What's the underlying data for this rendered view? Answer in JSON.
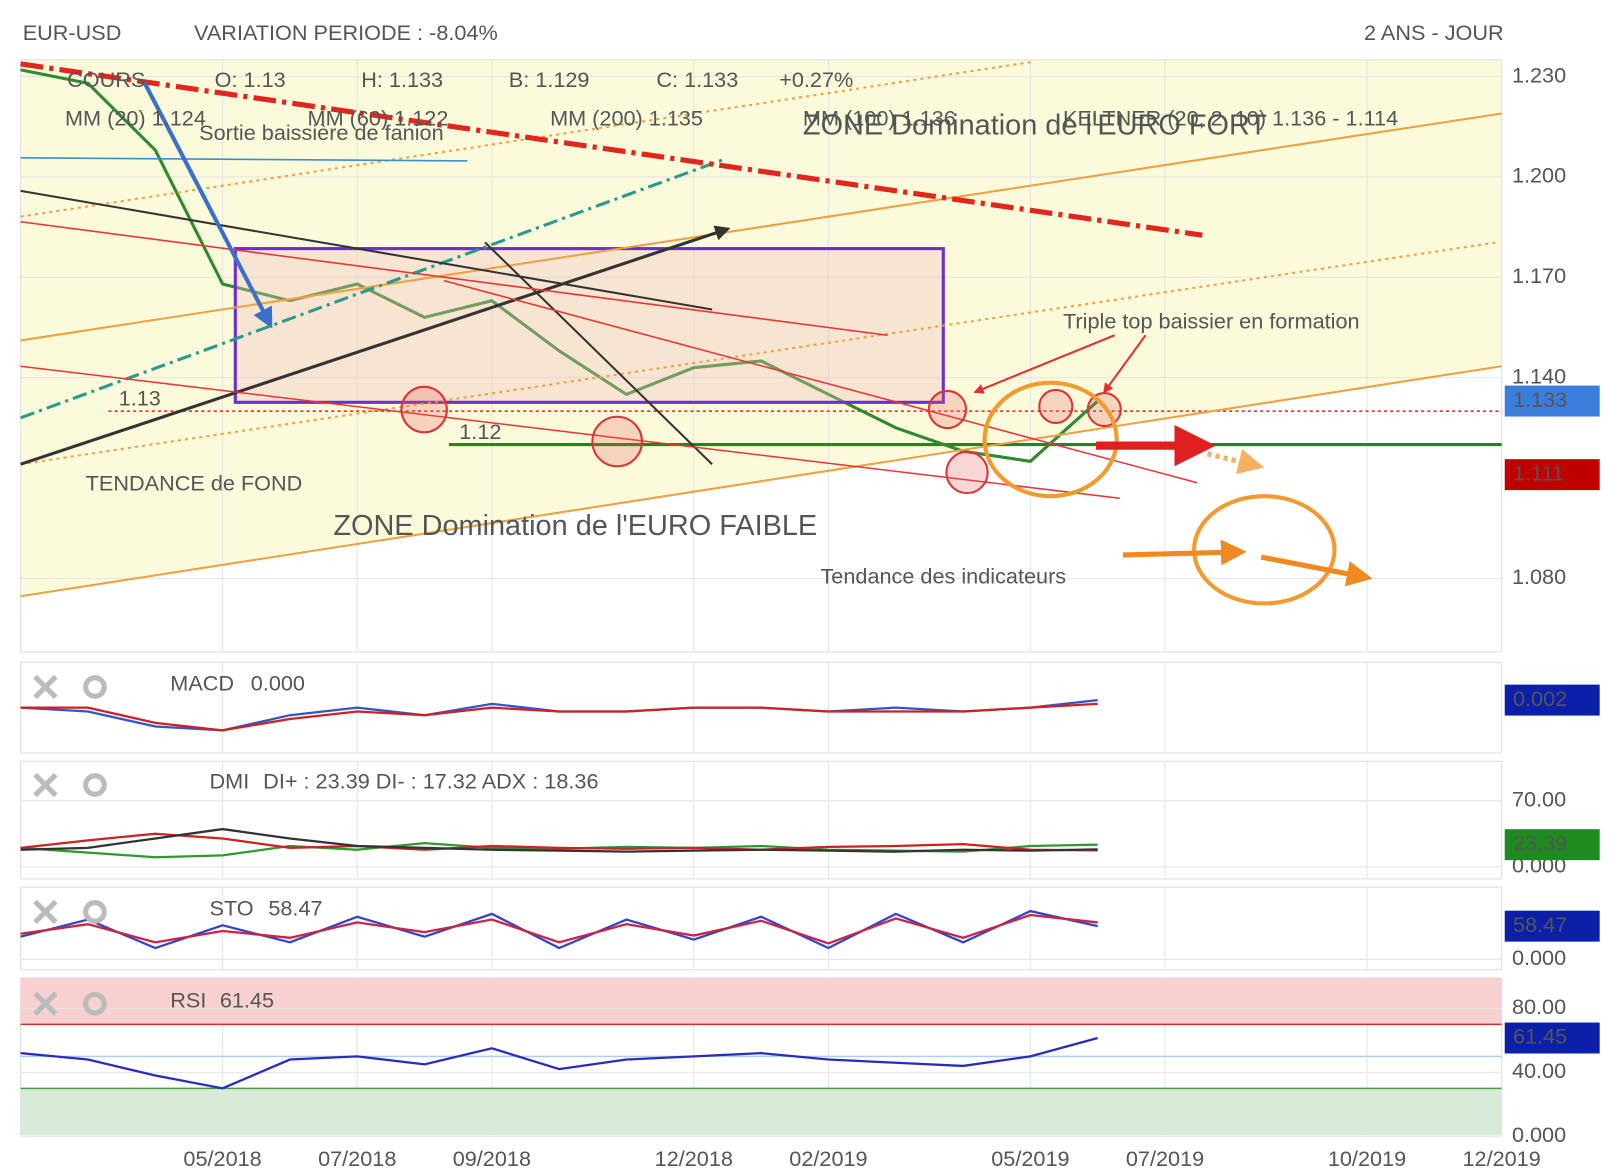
{
  "header": {
    "symbol": "EUR-USD",
    "variation": "VARIATION PERIODE : -8.04%",
    "period": "2 ANS - JOUR"
  },
  "chart_data": [
    {
      "type": "line",
      "x": [
        "02/2018",
        "03/2018",
        "04/2018",
        "05/2018",
        "06/2018",
        "07/2018",
        "08/2018",
        "09/2018",
        "10/2018",
        "11/2018",
        "12/2018",
        "01/2019",
        "02/2019",
        "03/2019",
        "04/2019",
        "05/2019",
        "06/2019"
      ],
      "series": [
        {
          "color": "#2f8a2f",
          "values": [
            1.232,
            1.228,
            1.208,
            1.168,
            1.163,
            1.168,
            1.158,
            1.163,
            1.148,
            1.135,
            1.143,
            1.145,
            1.135,
            1.125,
            1.118,
            1.115,
            1.133
          ]
        }
      ],
      "xlim": [
        "02/2018",
        "12/2019"
      ],
      "xticks": [
        "05/2018",
        "07/2018",
        "09/2018",
        "12/2018",
        "02/2019",
        "05/2019",
        "07/2019",
        "10/2019",
        "12/2019"
      ],
      "ylim": [
        1.058,
        1.235
      ],
      "yticks": [
        {
          "value": 1.23,
          "label": "1.230"
        },
        {
          "value": 1.2,
          "label": "1.200"
        },
        {
          "value": 1.17,
          "label": "1.170"
        },
        {
          "value": 1.14,
          "label": "1.140"
        },
        {
          "value": 1.08,
          "label": "1.080"
        }
      ],
      "levels": [
        1.13,
        1.12
      ],
      "price_boxes": [
        {
          "value": 1.133,
          "color": "#3b7ddd"
        },
        {
          "value": 1.111,
          "color": "#c00000"
        }
      ],
      "annotations": [
        "COURS",
        "O: 1.13",
        "H: 1.133",
        "B: 1.129",
        "C: 1.133",
        "+0.27%",
        "MM (20) 1.124",
        "MM (60) 1.122",
        "MM (200) 1.135",
        "MM (100) 1.136",
        "KELTNER (20, 2, 10) 1.136 - 1.114",
        "Sortie baissière de fanion",
        "ZONE Domination de l'EURO FORT",
        "Triple top baissier en formation",
        "TENDANCE de FOND",
        "ZONE Domination de l'EURO FAIBLE",
        "Tendance des indicateurs"
      ]
    },
    {
      "type": "line",
      "title": "MACD",
      "readout": "0.000",
      "series": [
        {
          "color": "#3355cc",
          "values": [
            0,
            -0.001,
            -0.005,
            -0.006,
            -0.002,
            0,
            -0.002,
            0.001,
            -0.001,
            -0.001,
            0,
            0,
            -0.001,
            0,
            -0.001,
            0,
            0.002
          ]
        },
        {
          "color": "#cc2222",
          "values": [
            0,
            0,
            -0.004,
            -0.006,
            -0.003,
            -0.001,
            -0.002,
            0,
            -0.001,
            -0.001,
            0,
            0,
            -0.001,
            -0.001,
            -0.001,
            0,
            0.001
          ]
        }
      ],
      "ylim": [
        -0.012,
        0.012
      ],
      "yticks": [],
      "last": 0.002,
      "last_color": "#0b1fa8"
    },
    {
      "type": "line",
      "title": "DMI",
      "readout": "DI+ : 23.39 DI- : 17.32 ADX : 18.36",
      "series": [
        {
          "color": "#2e9a2e",
          "values": [
            20,
            15,
            10,
            12,
            22,
            18,
            25,
            20,
            19,
            21,
            20,
            22,
            18,
            17,
            16,
            22,
            23.39
          ]
        },
        {
          "color": "#cc2222",
          "values": [
            20,
            28,
            35,
            30,
            20,
            22,
            18,
            22,
            20,
            19,
            20,
            18,
            21,
            22,
            24,
            18,
            17.32
          ]
        },
        {
          "color": "#333333",
          "values": [
            18,
            20,
            30,
            40,
            30,
            22,
            20,
            18,
            17,
            16,
            17,
            18,
            17,
            16,
            18,
            17,
            18.36
          ]
        }
      ],
      "ylim": [
        -13,
        112
      ],
      "yticks": [
        {
          "value": 70,
          "label": "70.00"
        },
        {
          "value": 0,
          "label": "0.000"
        }
      ],
      "last": 23.39,
      "last_color": "#1f8a1f"
    },
    {
      "type": "line",
      "title": "STO",
      "readout": "58.47",
      "series": [
        {
          "color": "#3344cc",
          "values": [
            40,
            70,
            20,
            60,
            30,
            75,
            40,
            80,
            20,
            70,
            35,
            75,
            20,
            80,
            30,
            85,
            58.47
          ]
        },
        {
          "color": "#cc2244",
          "values": [
            45,
            62,
            30,
            50,
            38,
            65,
            48,
            70,
            30,
            62,
            42,
            68,
            28,
            72,
            38,
            78,
            65
          ]
        }
      ],
      "ylim": [
        -18,
        127
      ],
      "yticks": [
        {
          "value": 0,
          "label": "0.000"
        }
      ],
      "last": 58.47,
      "last_color": "#0b1fa8"
    },
    {
      "type": "line",
      "title": "RSI",
      "readout": "61.45",
      "series": [
        {
          "color": "#2b2bbf",
          "values": [
            52,
            48,
            38,
            30,
            48,
            50,
            45,
            55,
            42,
            48,
            50,
            52,
            48,
            46,
            44,
            50,
            61.45
          ]
        }
      ],
      "ylim": [
        1,
        99
      ],
      "yticks": [
        {
          "value": 80,
          "label": "80.00"
        },
        {
          "value": 40,
          "label": "40.00"
        },
        {
          "value": 0,
          "label": "0.000"
        }
      ],
      "bands": [
        70,
        50,
        30
      ],
      "last": 61.45,
      "last_color": "#0b1fa8"
    }
  ]
}
